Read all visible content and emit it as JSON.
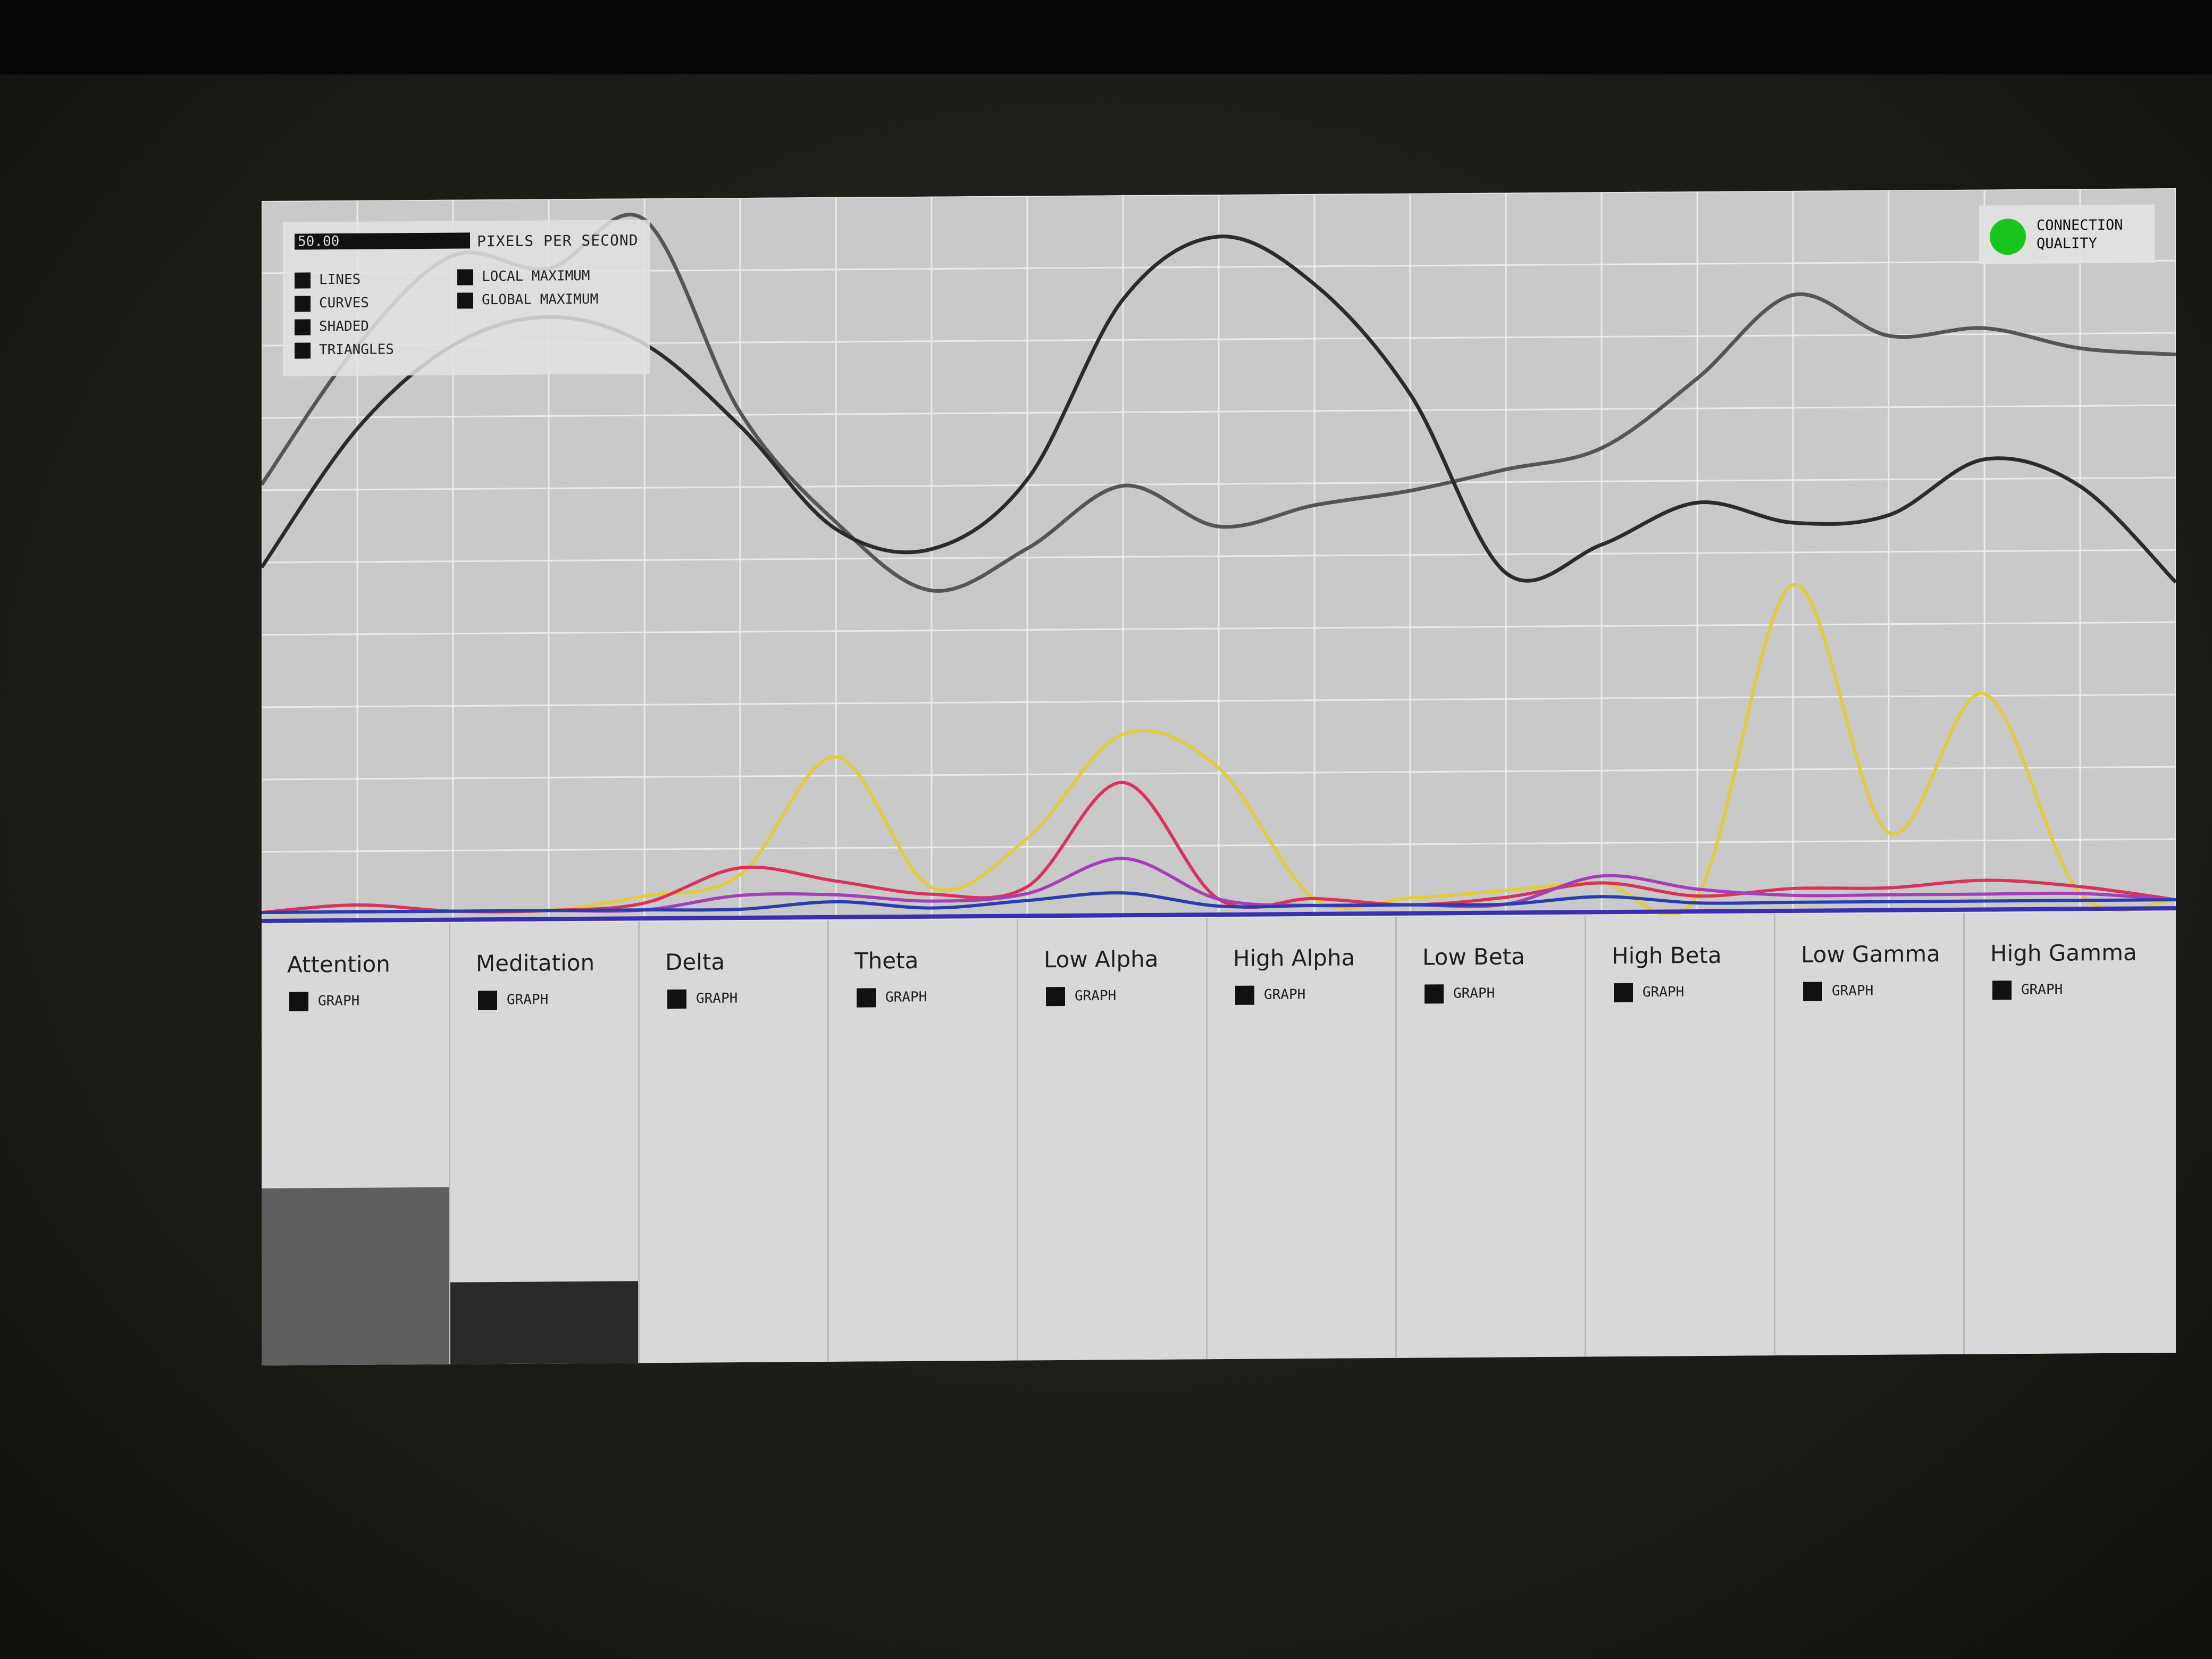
{
  "controls": {
    "speed_value": "50.00",
    "speed_label": "PIXELS PER SECOND",
    "options_left": [
      "LINES",
      "CURVES",
      "SHADED",
      "TRIANGLES"
    ],
    "options_right": [
      "LOCAL MAXIMUM",
      "GLOBAL MAXIMUM"
    ]
  },
  "connection": {
    "label_line1": "CONNECTION",
    "label_line2": "QUALITY",
    "status_color": "#19c41d"
  },
  "panels": [
    {
      "title": "Attention",
      "check_label": "GRAPH",
      "level": 0.52,
      "level_color": "#5d5e5d"
    },
    {
      "title": "Meditation",
      "check_label": "GRAPH",
      "level": 0.24,
      "level_color": "#2a2a2a"
    },
    {
      "title": "Delta",
      "check_label": "GRAPH"
    },
    {
      "title": "Theta",
      "check_label": "GRAPH"
    },
    {
      "title": "Low Alpha",
      "check_label": "GRAPH"
    },
    {
      "title": "High Alpha",
      "check_label": "GRAPH"
    },
    {
      "title": "Low Beta",
      "check_label": "GRAPH"
    },
    {
      "title": "High Beta",
      "check_label": "GRAPH"
    },
    {
      "title": "Low Gamma",
      "check_label": "GRAPH"
    },
    {
      "title": "High Gamma",
      "check_label": "GRAPH"
    }
  ],
  "chart_data": {
    "type": "line",
    "x": [
      0,
      1,
      2,
      3,
      4,
      5,
      6,
      7,
      8,
      9,
      10,
      11,
      12,
      13,
      14,
      15,
      16,
      17,
      18,
      19,
      20
    ],
    "grid": true,
    "series": [
      {
        "color": "#555555",
        "values": [
          0.62,
          0.82,
          0.95,
          0.93,
          1.0,
          0.72,
          0.56,
          0.46,
          0.52,
          0.61,
          0.55,
          0.58,
          0.6,
          0.63,
          0.66,
          0.76,
          0.88,
          0.82,
          0.83,
          0.8,
          0.79
        ]
      },
      {
        "color": "#2b2b2b",
        "values": [
          0.5,
          0.7,
          0.82,
          0.86,
          0.82,
          0.7,
          0.55,
          0.52,
          0.62,
          0.88,
          0.97,
          0.9,
          0.74,
          0.48,
          0.52,
          0.58,
          0.55,
          0.56,
          0.64,
          0.6,
          0.46
        ]
      },
      {
        "color": "#e3cc3a",
        "values": [
          0.0,
          0.0,
          0.0,
          0.0,
          0.02,
          0.05,
          0.22,
          0.03,
          0.1,
          0.25,
          0.2,
          0.01,
          0.01,
          0.02,
          0.03,
          0.01,
          0.46,
          0.1,
          0.3,
          0.01,
          0.0
        ]
      },
      {
        "color": "#d8335b",
        "values": [
          0.0,
          0.01,
          0.0,
          0.0,
          0.01,
          0.06,
          0.04,
          0.02,
          0.03,
          0.18,
          0.01,
          0.01,
          0.0,
          0.01,
          0.03,
          0.01,
          0.02,
          0.02,
          0.03,
          0.02,
          0.0
        ]
      },
      {
        "color": "#a43fb9",
        "values": [
          0.0,
          0.0,
          0.0,
          0.0,
          0.0,
          0.02,
          0.02,
          0.01,
          0.02,
          0.07,
          0.01,
          0.0,
          0.0,
          0.0,
          0.04,
          0.02,
          0.01,
          0.01,
          0.01,
          0.01,
          0.0
        ]
      },
      {
        "color": "#2b3bb0",
        "values": [
          0.0,
          0.0,
          0.0,
          0.0,
          0.0,
          0.0,
          0.01,
          0.0,
          0.01,
          0.02,
          0.0,
          0.0,
          0.0,
          0.0,
          0.01,
          0.0,
          0.0,
          0.0,
          0.0,
          0.0,
          0.0
        ]
      }
    ]
  }
}
